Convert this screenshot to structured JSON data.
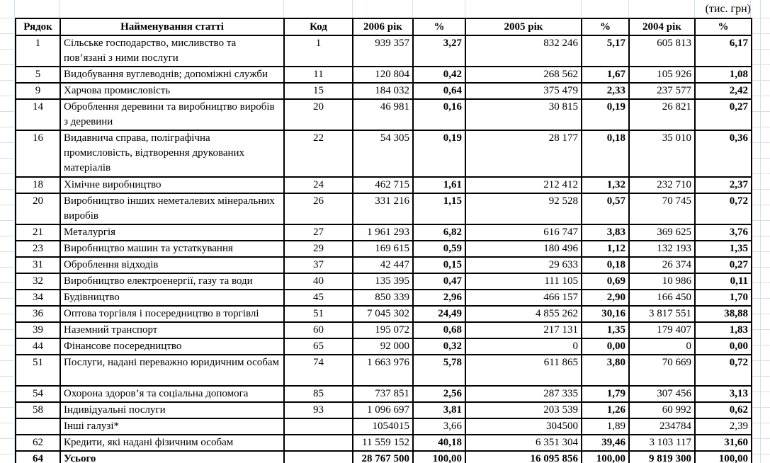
{
  "unit_label": "(тис. грн)",
  "table": {
    "columns": [
      "Рядок",
      "Найменування статті",
      "Код",
      "2006 рік",
      "%",
      "2005 рік",
      "%",
      "2004 рік",
      "%"
    ],
    "rows": [
      {
        "row": "1",
        "name": "Сільське господарство, мисливство та пов’язані з ними послуги",
        "code": "1",
        "v2006": "939 357",
        "p2006": "3,27",
        "v2005": "832 246",
        "p2005": "5,17",
        "v2004": "605 813",
        "p2004": "6,17",
        "lines": 2
      },
      {
        "row": "5",
        "name": "Видобування вуглеводнів; допоміжні служби",
        "code": "11",
        "v2006": "120 804",
        "p2006": "0,42",
        "v2005": "268 562",
        "p2005": "1,67",
        "v2004": "105 926",
        "p2004": "1,08",
        "lines": 1
      },
      {
        "row": "9",
        "name": "Харчова промисловість",
        "code": "15",
        "v2006": "184 032",
        "p2006": "0,64",
        "v2005": "375 479",
        "p2005": "2,33",
        "v2004": "237 577",
        "p2004": "2,42",
        "lines": 1
      },
      {
        "row": "14",
        "name": "Оброблення деревини та виробництво виробів з деревини",
        "code": "20",
        "v2006": "46 981",
        "p2006": "0,16",
        "v2005": "30 815",
        "p2005": "0,19",
        "v2004": "26 821",
        "p2004": "0,27",
        "lines": 2
      },
      {
        "row": "16",
        "name": "Видавнича справа, поліграфічна промисловість, відтворення друкованих матеріалів",
        "code": "22",
        "v2006": "54 305",
        "p2006": "0,19",
        "v2005": "28 177",
        "p2005": "0,18",
        "v2004": "35 010",
        "p2004": "0,36",
        "lines": 3
      },
      {
        "row": "18",
        "name": "Хімічне виробництво",
        "code": "24",
        "v2006": "462 715",
        "p2006": "1,61",
        "v2005": "212 412",
        "p2005": "1,32",
        "v2004": "232 710",
        "p2004": "2,37",
        "lines": 1
      },
      {
        "row": "20",
        "name": "Виробництво інших неметалевих мінеральних виробів",
        "code": "26",
        "v2006": "331 216",
        "p2006": "1,15",
        "v2005": "92 528",
        "p2005": "0,57",
        "v2004": "70 745",
        "p2004": "0,72",
        "lines": 2
      },
      {
        "row": "21",
        "name": "Металургія",
        "code": "27",
        "v2006": "1 961 293",
        "p2006": "6,82",
        "v2005": "616 747",
        "p2005": "3,83",
        "v2004": "369 625",
        "p2004": "3,76",
        "lines": 1
      },
      {
        "row": "23",
        "name": "Виробництво машин та устаткування",
        "code": "29",
        "v2006": "169 615",
        "p2006": "0,59",
        "v2005": "180 496",
        "p2005": "1,12",
        "v2004": "132 193",
        "p2004": "1,35",
        "lines": 1
      },
      {
        "row": "31",
        "name": "Оброблення відходів",
        "code": "37",
        "v2006": "42 447",
        "p2006": "0,15",
        "v2005": "29 633",
        "p2005": "0,18",
        "v2004": "26 374",
        "p2004": "0,27",
        "lines": 1
      },
      {
        "row": "32",
        "name": "Виробництво електроенергії, газу та води",
        "code": "40",
        "v2006": "135 395",
        "p2006": "0,47",
        "v2005": "111 105",
        "p2005": "0,69",
        "v2004": "10 986",
        "p2004": "0,11",
        "lines": 1
      },
      {
        "row": "34",
        "name": "Будівництво",
        "code": "45",
        "v2006": "850 339",
        "p2006": "2,96",
        "v2005": "466 157",
        "p2005": "2,90",
        "v2004": "166 450",
        "p2004": "1,70",
        "lines": 1
      },
      {
        "row": "36",
        "name": "Оптова торгівля і посередництво в торгівлі",
        "code": "51",
        "v2006": "7 045 302",
        "p2006": "24,49",
        "v2005": "4 855 262",
        "p2005": "30,16",
        "v2004": "3 817 551",
        "p2004": "38,88",
        "lines": 1
      },
      {
        "row": "39",
        "name": "Наземний транспорт",
        "code": "60",
        "v2006": "195 072",
        "p2006": "0,68",
        "v2005": "217 131",
        "p2005": "1,35",
        "v2004": "179 407",
        "p2004": "1,83",
        "lines": 1
      },
      {
        "row": "44",
        "name": "Фінансове посередництво",
        "code": "65",
        "v2006": "92 000",
        "p2006": "0,32",
        "v2005": "0",
        "p2005": "0,00",
        "v2004": "0",
        "p2004": "0,00",
        "lines": 1
      },
      {
        "row": "51",
        "name": "Послуги, надані переважно юридичним особам",
        "code": "74",
        "v2006": "1 663 976",
        "p2006": "5,78",
        "v2005": "611 865",
        "p2005": "3,80",
        "v2004": "70 669",
        "p2004": "0,72",
        "lines": 2
      },
      {
        "row": "54",
        "name": "Охорона здоров’я та соціальна допомога",
        "code": "85",
        "v2006": "737 851",
        "p2006": "2,56",
        "v2005": "287 335",
        "p2005": "1,79",
        "v2004": "307 456",
        "p2004": "3,13",
        "lines": 1
      },
      {
        "row": "58",
        "name": "Індивідуальні послуги",
        "code": "93",
        "v2006": "1 096 697",
        "p2006": "3,81",
        "v2005": "203 539",
        "p2005": "1,26",
        "v2004": "60 992",
        "p2004": "0,62",
        "lines": 1
      },
      {
        "row": "",
        "name": "Інші галузі*",
        "code": "",
        "v2006": "1054015",
        "p2006": "3,66",
        "v2005": "304500",
        "p2005": "1,89",
        "v2004": "234784",
        "p2004": "2,39",
        "lines": 1,
        "pct_bold": false
      },
      {
        "row": "62",
        "name": "Кредити, які надані фізичним особам",
        "code": "",
        "v2006": "11 559 152",
        "p2006": "40,18",
        "v2005": "6 351 304",
        "p2005": "39,46",
        "v2004": "3 103 117",
        "p2004": "31,60",
        "lines": 1
      },
      {
        "row": "64",
        "name": "Усього",
        "code": "",
        "v2006": "28 767 500",
        "p2006": "100,00",
        "v2005": "16 095 856",
        "p2005": "100,00",
        "v2004": "9 819 300",
        "p2004": "100,00",
        "lines": 1,
        "total": true
      }
    ]
  }
}
